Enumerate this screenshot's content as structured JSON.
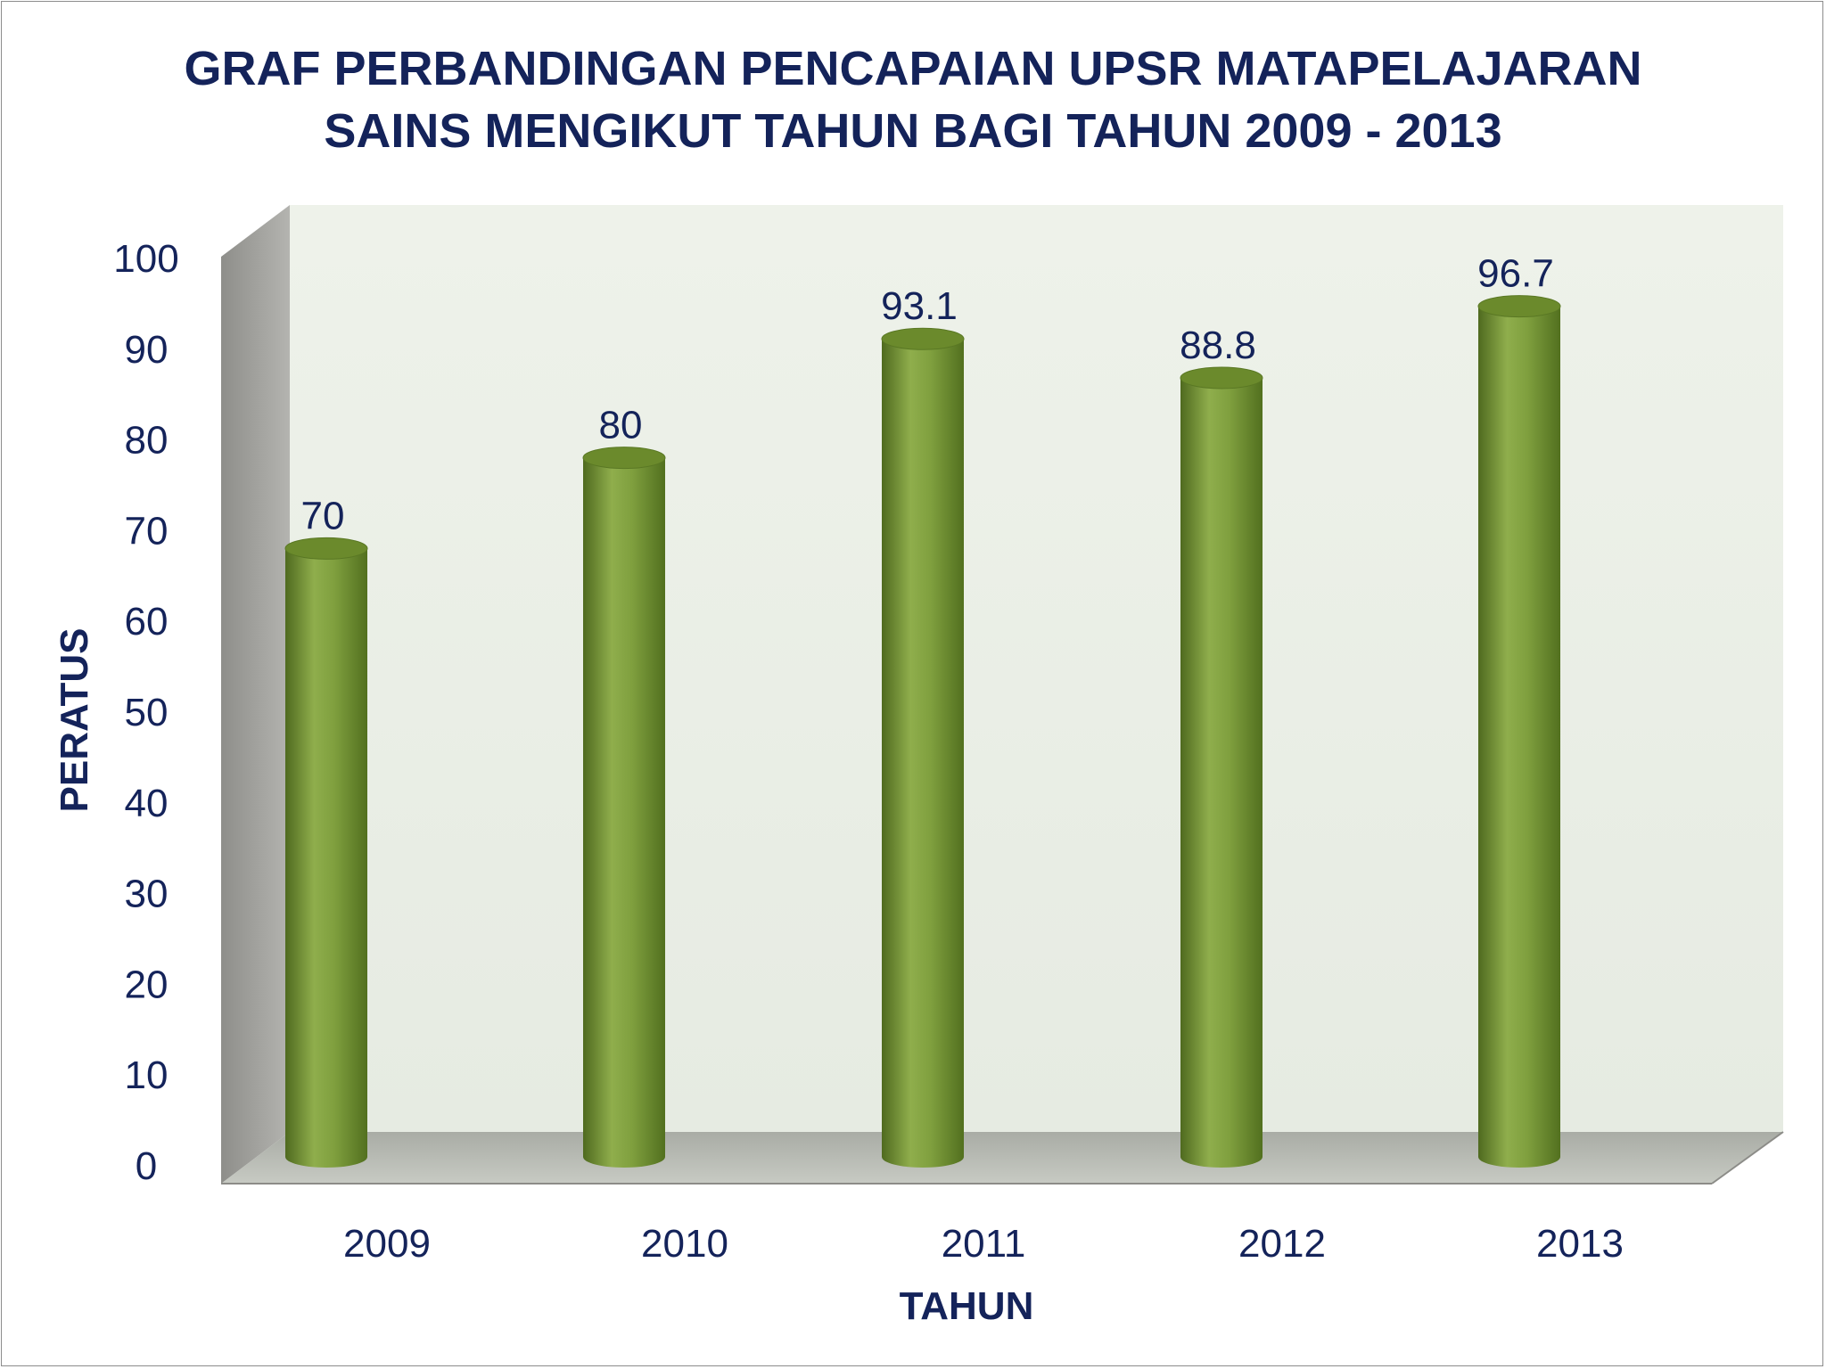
{
  "chart_data": {
    "type": "bar",
    "title_lines": [
      "GRAF PERBANDINGAN PENCAPAIAN UPSR MATAPELAJARAN",
      "SAINS MENGIKUT TAHUN BAGI TAHUN 2009 - 2013"
    ],
    "categories": [
      "2009",
      "2010",
      "2011",
      "2012",
      "2013"
    ],
    "values": [
      70,
      80,
      93.1,
      88.8,
      96.7
    ],
    "value_labels": [
      "70",
      "80",
      "93.1",
      "88.8",
      "96.7"
    ],
    "xlabel": "TAHUN",
    "ylabel": "PERATUS",
    "ylim": [
      0,
      100
    ],
    "yticks": [
      "0",
      "10",
      "20",
      "30",
      "40",
      "50",
      "60",
      "70",
      "80",
      "90",
      "100"
    ],
    "grid": false,
    "style": "3d-cylinder",
    "colors": {
      "bar": "#7a9a3a",
      "bar_light": "#95b550",
      "bar_dark": "#4f6a1f",
      "back_wall": "#eef1ea",
      "side_wall": "#9c9c98",
      "floor": "#b9bcb6",
      "text": "#14235a"
    }
  }
}
